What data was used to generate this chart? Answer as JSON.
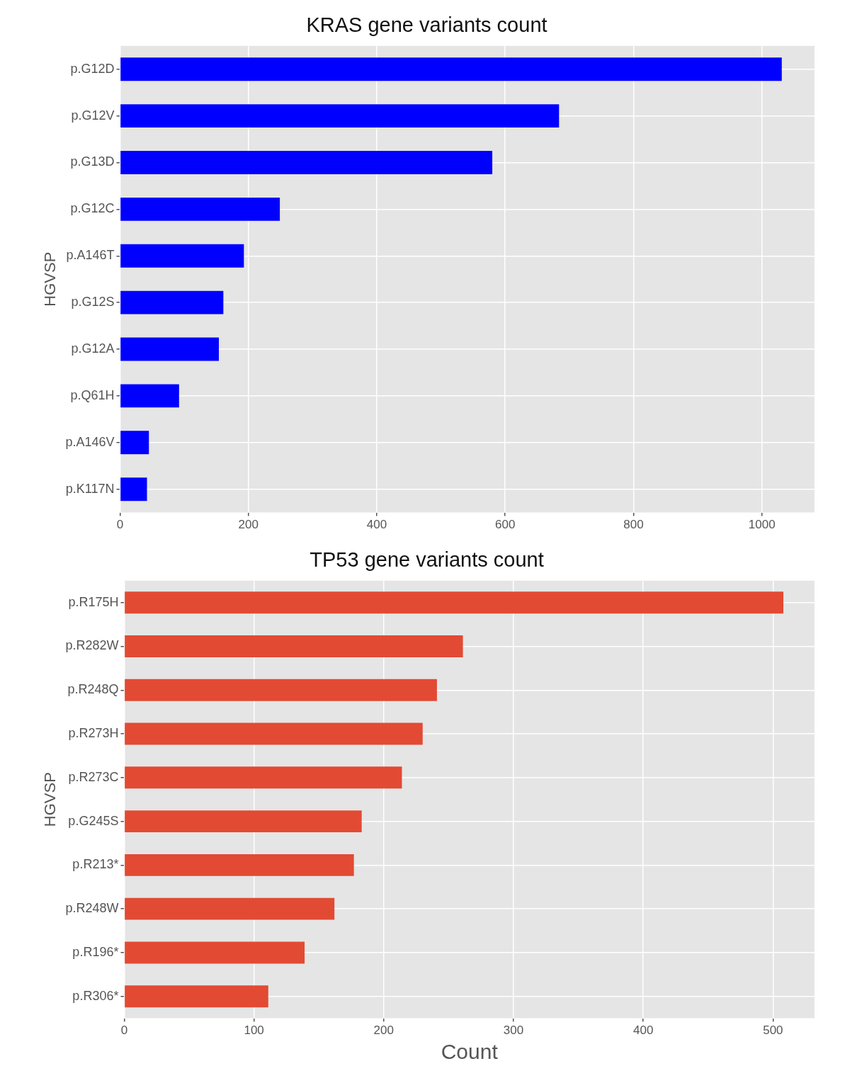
{
  "chart_data": [
    {
      "type": "bar",
      "orientation": "horizontal",
      "title": "KRAS gene variants count",
      "ylabel": "HGVSP",
      "categories": [
        "p.G12D",
        "p.G12V",
        "p.G13D",
        "p.G12C",
        "p.A146T",
        "p.G12S",
        "p.G12A",
        "p.Q61H",
        "p.A146V",
        "p.K117N"
      ],
      "values": [
        1031,
        684,
        580,
        249,
        193,
        161,
        154,
        92,
        45,
        42
      ],
      "color": "#0000ff",
      "xlim": [
        0,
        1082
      ],
      "xticks": [
        0,
        200,
        400,
        600,
        800,
        1000
      ],
      "grid": true
    },
    {
      "type": "bar",
      "orientation": "horizontal",
      "title": "TP53 gene variants count",
      "ylabel": "HGVSP",
      "xlabel": "Count",
      "categories": [
        "p.R175H",
        "p.R282W",
        "p.R248Q",
        "p.R273H",
        "p.R273C",
        "p.G245S",
        "p.R213*",
        "p.R248W",
        "p.R196*",
        "p.R306*"
      ],
      "values": [
        508,
        261,
        241,
        230,
        214,
        183,
        177,
        162,
        139,
        111
      ],
      "color": "#e24a33",
      "xlim": [
        0,
        532
      ],
      "xticks": [
        0,
        100,
        200,
        300,
        400,
        500
      ],
      "grid": true
    }
  ]
}
